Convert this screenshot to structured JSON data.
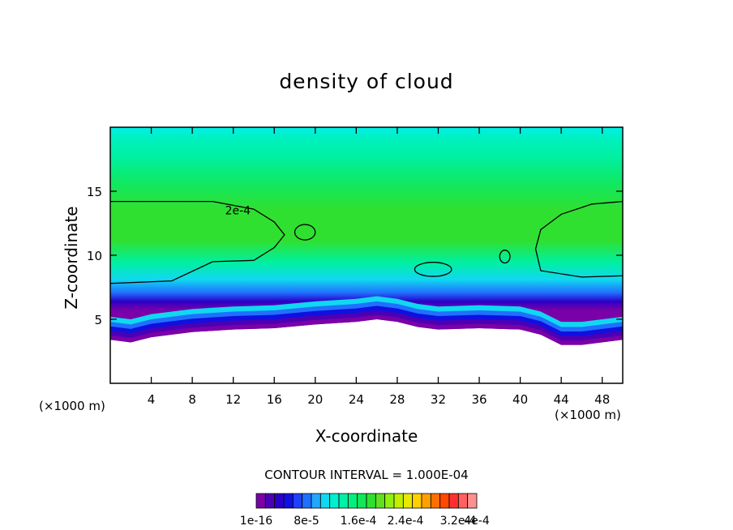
{
  "chart_data": {
    "type": "heatmap",
    "title": "density of cloud",
    "xlabel": "X-coordinate",
    "ylabel": "Z-coordinate",
    "x_unit": "(×1000 m)",
    "y_unit": "(×1000 m)",
    "xlim": [
      0,
      50
    ],
    "ylim": [
      0,
      20
    ],
    "xticks": [
      4,
      8,
      12,
      16,
      20,
      24,
      28,
      32,
      36,
      40,
      44,
      48
    ],
    "yticks": [
      5,
      10,
      15
    ],
    "contour_label": "2e-4",
    "contour_interval_text": "CONTOUR INTERVAL = 1.000E-04",
    "colorbar": {
      "labels": [
        "1e-16",
        "8e-5",
        "1.6e-4",
        "2.4e-4",
        "3.2e-4",
        "4e-4"
      ],
      "colors": [
        "#7a00a8",
        "#4b00b4",
        "#2a00c8",
        "#1010e0",
        "#1e40ff",
        "#2070ff",
        "#20a8ff",
        "#10d8f0",
        "#00f0d0",
        "#00f0a8",
        "#00f080",
        "#10e858",
        "#30e030",
        "#60e020",
        "#90f010",
        "#c0f000",
        "#e8e800",
        "#ffd000",
        "#ffa000",
        "#ff7000",
        "#ff4800",
        "#ff3030",
        "#ff6060",
        "#ff9090"
      ]
    },
    "series": [
      {
        "cloud_base_km": [
          [
            0,
            3.4
          ],
          [
            2,
            3.2
          ],
          [
            4,
            3.6
          ],
          [
            8,
            4.0
          ],
          [
            12,
            4.2
          ],
          [
            16,
            4.3
          ],
          [
            20,
            4.6
          ],
          [
            24,
            4.8
          ],
          [
            26,
            5.0
          ],
          [
            28,
            4.8
          ],
          [
            30,
            4.4
          ],
          [
            32,
            4.2
          ],
          [
            36,
            4.3
          ],
          [
            40,
            4.2
          ],
          [
            42,
            3.8
          ],
          [
            44,
            3.0
          ],
          [
            46,
            3.0
          ],
          [
            50,
            3.4
          ]
        ],
        "cloud_top_km": [
          [
            0,
            19.5
          ],
          [
            24,
            19.5
          ],
          [
            50,
            19.5
          ]
        ],
        "contour_2e-4_km": [
          [
            0,
            14.2
          ],
          [
            10,
            14.2
          ],
          [
            14,
            13.6
          ],
          [
            16,
            12.6
          ],
          [
            17,
            11.6
          ],
          [
            16,
            10.6
          ],
          [
            14,
            9.6
          ],
          [
            10,
            9.5
          ],
          [
            6,
            8.0
          ],
          [
            0,
            7.8
          ]
        ]
      }
    ]
  }
}
